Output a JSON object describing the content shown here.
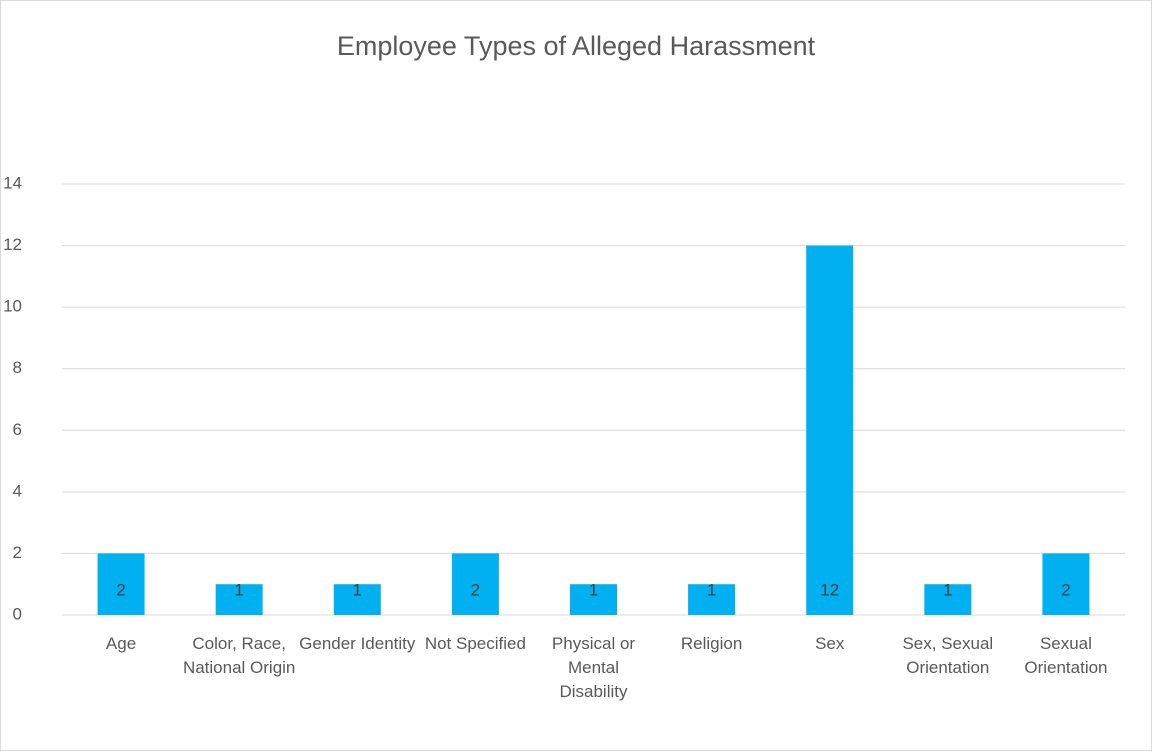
{
  "chart_data": {
    "type": "bar",
    "title": "Employee Types of Alleged Harassment",
    "categories": [
      "Age",
      "Color, Race, National Origin",
      "Gender Identity",
      "Not Specified",
      "Physical or Mental Disability",
      "Religion",
      "Sex",
      "Sex, Sexual Orientation",
      "Sexual Orientation"
    ],
    "values": [
      2,
      1,
      1,
      2,
      1,
      1,
      12,
      1,
      2
    ],
    "color": "#00b0f0",
    "ylim": [
      0,
      14
    ],
    "yticks": [
      0,
      2,
      4,
      6,
      8,
      10,
      12,
      14
    ],
    "grid": true
  }
}
